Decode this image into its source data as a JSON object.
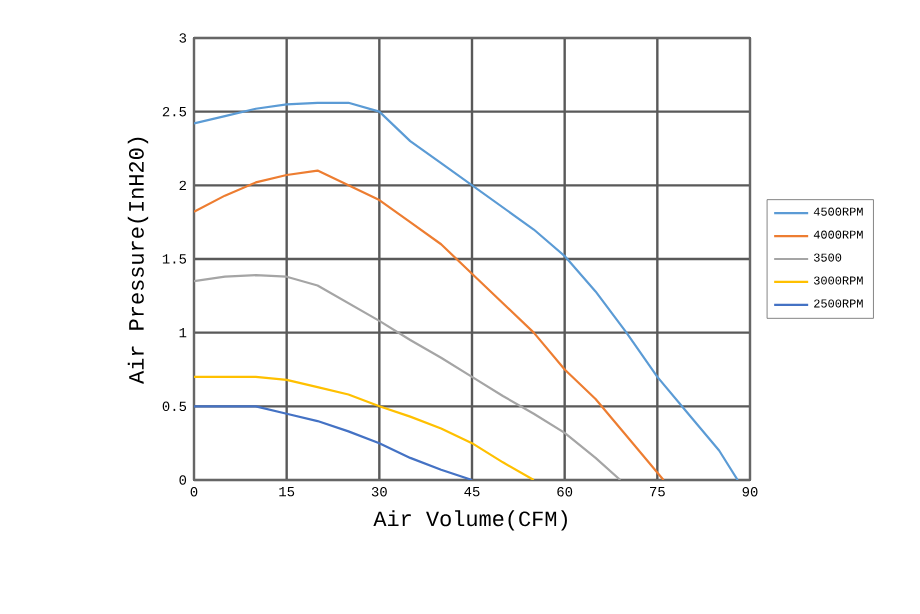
{
  "chart_data": {
    "type": "line",
    "xlabel": "Air Volume(CFM)",
    "ylabel": "Air Pressure(InH20)",
    "xlim": [
      0,
      90
    ],
    "xticks": [
      0,
      15,
      30,
      45,
      60,
      75,
      90
    ],
    "ylim": [
      0,
      3
    ],
    "yticks": [
      0,
      0.5,
      1,
      1.5,
      2,
      2.5,
      3
    ],
    "grid": true,
    "legend": "right",
    "marker": "none",
    "line_style": "solid",
    "series": [
      {
        "name": "4500RPM",
        "color": "#5b9bd5",
        "x": [
          0,
          5,
          10,
          15,
          20,
          25,
          30,
          35,
          40,
          45,
          50,
          55,
          60,
          65,
          70,
          75,
          80,
          85,
          88
        ],
        "values": [
          2.42,
          2.47,
          2.52,
          2.55,
          2.56,
          2.56,
          2.5,
          2.3,
          2.15,
          2.0,
          1.85,
          1.7,
          1.52,
          1.28,
          1.0,
          0.7,
          0.45,
          0.2,
          0
        ]
      },
      {
        "name": "4000RPM",
        "color": "#ed7d31",
        "x": [
          0,
          5,
          10,
          15,
          20,
          25,
          30,
          35,
          40,
          45,
          50,
          55,
          60,
          65,
          70,
          76
        ],
        "values": [
          1.82,
          1.93,
          2.02,
          2.07,
          2.1,
          2.0,
          1.9,
          1.75,
          1.6,
          1.4,
          1.2,
          1.0,
          0.75,
          0.55,
          0.3,
          0
        ]
      },
      {
        "name": "3500",
        "color": "#a5a5a5",
        "x": [
          0,
          5,
          10,
          15,
          20,
          25,
          30,
          35,
          40,
          45,
          50,
          55,
          60,
          65,
          69
        ],
        "values": [
          1.35,
          1.38,
          1.39,
          1.38,
          1.32,
          1.2,
          1.08,
          0.95,
          0.83,
          0.7,
          0.57,
          0.45,
          0.32,
          0.15,
          0
        ]
      },
      {
        "name": "3000RPM",
        "color": "#ffc000",
        "x": [
          0,
          10,
          15,
          20,
          25,
          30,
          35,
          40,
          45,
          50,
          55
        ],
        "values": [
          0.7,
          0.7,
          0.68,
          0.63,
          0.58,
          0.5,
          0.43,
          0.35,
          0.25,
          0.12,
          0
        ]
      },
      {
        "name": "2500RPM",
        "color": "#4472c4",
        "x": [
          0,
          10,
          15,
          20,
          25,
          30,
          35,
          40,
          45
        ],
        "values": [
          0.5,
          0.5,
          0.45,
          0.4,
          0.33,
          0.25,
          0.15,
          0.07,
          0
        ]
      }
    ]
  }
}
